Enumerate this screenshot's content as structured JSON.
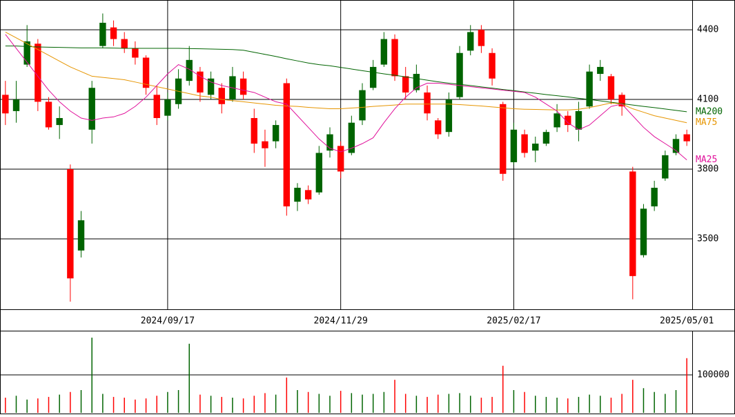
{
  "chart_data": [
    {
      "type": "candlestick",
      "categories": [
        null,
        null,
        null,
        null,
        null,
        null,
        null,
        null,
        null,
        null,
        null,
        null,
        null,
        null,
        null,
        "2024/09/17",
        null,
        null,
        null,
        null,
        null,
        null,
        null,
        null,
        null,
        null,
        null,
        null,
        null,
        null,
        null,
        "2024/11/29",
        null,
        null,
        null,
        null,
        null,
        null,
        null,
        null,
        null,
        null,
        null,
        null,
        null,
        null,
        null,
        "2025/02/17",
        null,
        null,
        null,
        null,
        null,
        null,
        null,
        null,
        null,
        null,
        null,
        null,
        null,
        null,
        null,
        "2025/05/01"
      ],
      "open": [
        4120,
        4050,
        4250,
        4340,
        4090,
        3990,
        3800,
        3450,
        3970,
        4330,
        4410,
        4360,
        4320,
        4280,
        4120,
        4030,
        4080,
        4180,
        4220,
        4120,
        4150,
        4100,
        4190,
        4020,
        3920,
        3920,
        4170,
        3660,
        3710,
        3700,
        3880,
        3900,
        3870,
        4010,
        4150,
        4250,
        4360,
        4200,
        4140,
        4130,
        4010,
        3960,
        4110,
        4310,
        4400,
        4300,
        4080,
        3830,
        3950,
        3880,
        3910,
        3980,
        4030,
        3970,
        4070,
        4210,
        4200,
        4120,
        3790,
        3430,
        3640,
        3760,
        3870,
        3950
      ],
      "high": [
        4180,
        4180,
        4420,
        4360,
        4110,
        4070,
        3820,
        3620,
        4180,
        4470,
        4440,
        4390,
        4350,
        4290,
        4160,
        4130,
        4230,
        4330,
        4240,
        4220,
        4170,
        4240,
        4220,
        4060,
        3970,
        4010,
        4190,
        3740,
        3730,
        3900,
        3980,
        3920,
        4030,
        4170,
        4270,
        4390,
        4380,
        4240,
        4250,
        4160,
        4020,
        4130,
        4330,
        4420,
        4420,
        4320,
        4090,
        4000,
        3970,
        3940,
        3970,
        4080,
        4050,
        4090,
        4250,
        4270,
        4210,
        4130,
        3810,
        3650,
        3750,
        3880,
        3950,
        3970
      ],
      "low": [
        3990,
        4000,
        4240,
        4050,
        3970,
        3930,
        3230,
        3420,
        3910,
        4320,
        4330,
        4300,
        4250,
        4120,
        3990,
        4010,
        4060,
        4160,
        4090,
        4100,
        4040,
        4090,
        4100,
        3870,
        3810,
        3890,
        3600,
        3620,
        3650,
        3690,
        3850,
        3760,
        3860,
        3990,
        4140,
        4240,
        4180,
        4100,
        4130,
        4010,
        3930,
        3940,
        4100,
        4290,
        4300,
        4160,
        3750,
        3820,
        3850,
        3830,
        3900,
        3960,
        3960,
        3920,
        4060,
        4180,
        4080,
        4030,
        3240,
        3420,
        3620,
        3750,
        3860,
        3900
      ],
      "close": [
        4040,
        4100,
        4350,
        4090,
        3980,
        4020,
        3330,
        3580,
        4150,
        4430,
        4360,
        4320,
        4280,
        4150,
        4020,
        4100,
        4190,
        4270,
        4130,
        4190,
        4080,
        4200,
        4120,
        3910,
        3890,
        3990,
        3640,
        3720,
        3670,
        3870,
        3950,
        3790,
        4000,
        4140,
        4240,
        4360,
        4200,
        4130,
        4210,
        4040,
        3950,
        4100,
        4300,
        4390,
        4330,
        4190,
        3780,
        3970,
        3870,
        3910,
        3960,
        4040,
        3990,
        4050,
        4220,
        4240,
        4100,
        4070,
        3340,
        3630,
        3720,
        3860,
        3930,
        3920
      ],
      "up_color": "#006400",
      "down_color": "#ff0000",
      "series": [
        {
          "name": "MA200",
          "color": "#006400",
          "values": [
            4330,
            4330,
            4328,
            4326,
            4325,
            4324,
            4323,
            4322,
            4322,
            4322,
            4321,
            4320,
            4320,
            4320,
            4320,
            4320,
            4320,
            4319,
            4318,
            4317,
            4316,
            4315,
            4312,
            4303,
            4294,
            4285,
            4275,
            4266,
            4257,
            4250,
            4245,
            4238,
            4231,
            4224,
            4217,
            4210,
            4204,
            4197,
            4190,
            4183,
            4176,
            4170,
            4165,
            4160,
            4154,
            4149,
            4143,
            4138,
            4132,
            4127,
            4121,
            4116,
            4111,
            4105,
            4100,
            4094,
            4088,
            4082,
            4076,
            4070,
            4065,
            4059,
            4053,
            4047
          ]
        },
        {
          "name": "MA75",
          "color": "#e69500",
          "values": [
            4390,
            4365,
            4340,
            4315,
            4290,
            4265,
            4240,
            4220,
            4200,
            4195,
            4190,
            4185,
            4175,
            4165,
            4155,
            4145,
            4135,
            4125,
            4115,
            4110,
            4100,
            4095,
            4090,
            4085,
            4080,
            4075,
            4072,
            4070,
            4066,
            4063,
            4060,
            4060,
            4063,
            4066,
            4070,
            4073,
            4076,
            4080,
            4080,
            4080,
            4080,
            4080,
            4078,
            4075,
            4072,
            4068,
            4064,
            4060,
            4058,
            4057,
            4056,
            4055,
            4055,
            4058,
            4065,
            4075,
            4085,
            4080,
            4060,
            4045,
            4030,
            4020,
            4010,
            4000
          ]
        },
        {
          "name": "MA25",
          "color": "#e0109a",
          "values": [
            4380,
            4320,
            4260,
            4200,
            4140,
            4090,
            4050,
            4020,
            4010,
            4020,
            4025,
            4040,
            4070,
            4110,
            4160,
            4210,
            4250,
            4230,
            4200,
            4175,
            4160,
            4150,
            4140,
            4130,
            4110,
            4090,
            4080,
            4030,
            3980,
            3930,
            3890,
            3875,
            3890,
            3910,
            3935,
            4000,
            4060,
            4110,
            4150,
            4170,
            4170,
            4165,
            4160,
            4155,
            4150,
            4145,
            4140,
            4135,
            4130,
            4110,
            4080,
            4050,
            4000,
            3970,
            3990,
            4030,
            4070,
            4080,
            4030,
            3980,
            3940,
            3910,
            3880,
            3840
          ]
        }
      ],
      "ylim": [
        3197,
        4528
      ],
      "yticks": [
        3500,
        3800,
        4100,
        4400
      ],
      "grid": true
    },
    {
      "type": "bar",
      "values": [
        40000,
        45000,
        35000,
        38000,
        42000,
        48000,
        55000,
        60000,
        198000,
        50000,
        42000,
        40000,
        35000,
        38000,
        45000,
        55000,
        60000,
        182000,
        48000,
        45000,
        42000,
        40000,
        38000,
        45000,
        52000,
        48000,
        93000,
        60000,
        55000,
        50000,
        45000,
        58000,
        52000,
        48000,
        50000,
        55000,
        87000,
        50000,
        45000,
        42000,
        48000,
        50000,
        52000,
        45000,
        40000,
        42000,
        124000,
        60000,
        55000,
        45000,
        42000,
        40000,
        38000,
        42000,
        48000,
        45000,
        40000,
        50000,
        87000,
        65000,
        55000,
        50000,
        60000,
        144000
      ],
      "ylim": [
        0,
        214500
      ],
      "yticks": [
        100000
      ],
      "grid": true
    }
  ]
}
